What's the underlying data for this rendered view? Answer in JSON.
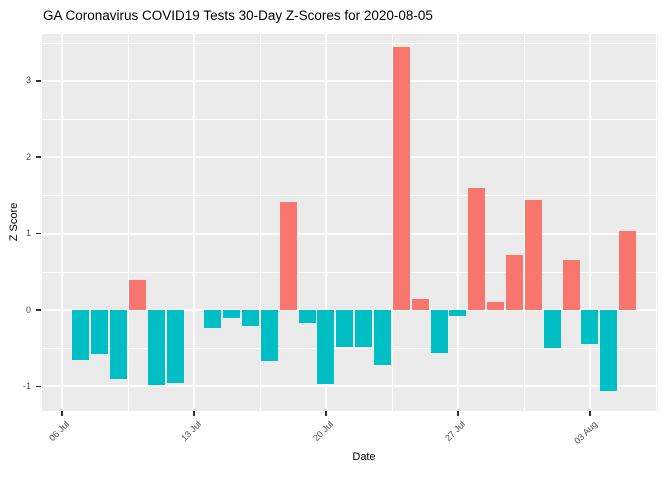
{
  "chart_data": {
    "type": "bar",
    "title": "GA Coronavirus COVID19 Tests 30-Day Z-Scores for 2020-08-05",
    "xlabel": "Date",
    "ylabel": "Z Score",
    "x_tick_labels": [
      "06 Jul",
      "13 Jul",
      "20 Jul",
      "27 Jul",
      "03 Aug"
    ],
    "y_tick_labels": [
      "3",
      "2",
      "1",
      "0",
      "-1"
    ],
    "y_tick_values": [
      3,
      2,
      1,
      0,
      -1
    ],
    "y_minor_values": [
      3.5,
      2.5,
      1.5,
      0.5,
      -0.5
    ],
    "ylim": [
      -1.32,
      3.61
    ],
    "grid": true,
    "legend_position": "none",
    "dates": [
      "2020-07-07",
      "2020-07-08",
      "2020-07-09",
      "2020-07-10",
      "2020-07-11",
      "2020-07-12",
      "2020-07-13",
      "2020-07-14",
      "2020-07-15",
      "2020-07-16",
      "2020-07-17",
      "2020-07-18",
      "2020-07-19",
      "2020-07-20",
      "2020-07-21",
      "2020-07-22",
      "2020-07-23",
      "2020-07-24",
      "2020-07-25",
      "2020-07-26",
      "2020-07-27",
      "2020-07-28",
      "2020-07-29",
      "2020-07-30",
      "2020-07-31",
      "2020-08-01",
      "2020-08-02",
      "2020-08-03",
      "2020-08-04",
      "2020-08-05"
    ],
    "values": [
      -0.65,
      -0.57,
      -0.9,
      0.39,
      -0.98,
      -0.96,
      null,
      -0.23,
      -0.1,
      -0.21,
      -0.67,
      1.42,
      -0.17,
      -0.97,
      -0.49,
      -0.48,
      -0.72,
      3.44,
      0.15,
      -0.56,
      -0.08,
      1.6,
      0.11,
      0.72,
      1.44,
      -0.5,
      0.66,
      -0.44,
      -1.06,
      1.03
    ],
    "colors": {
      "positive_bar": "#F8766D",
      "negative_bar": "#00BFC4",
      "panel_background": "#EBEBEB",
      "gridline": "#FFFFFF",
      "axis_text": "#4D4D4D",
      "title_text": "#000000"
    }
  }
}
